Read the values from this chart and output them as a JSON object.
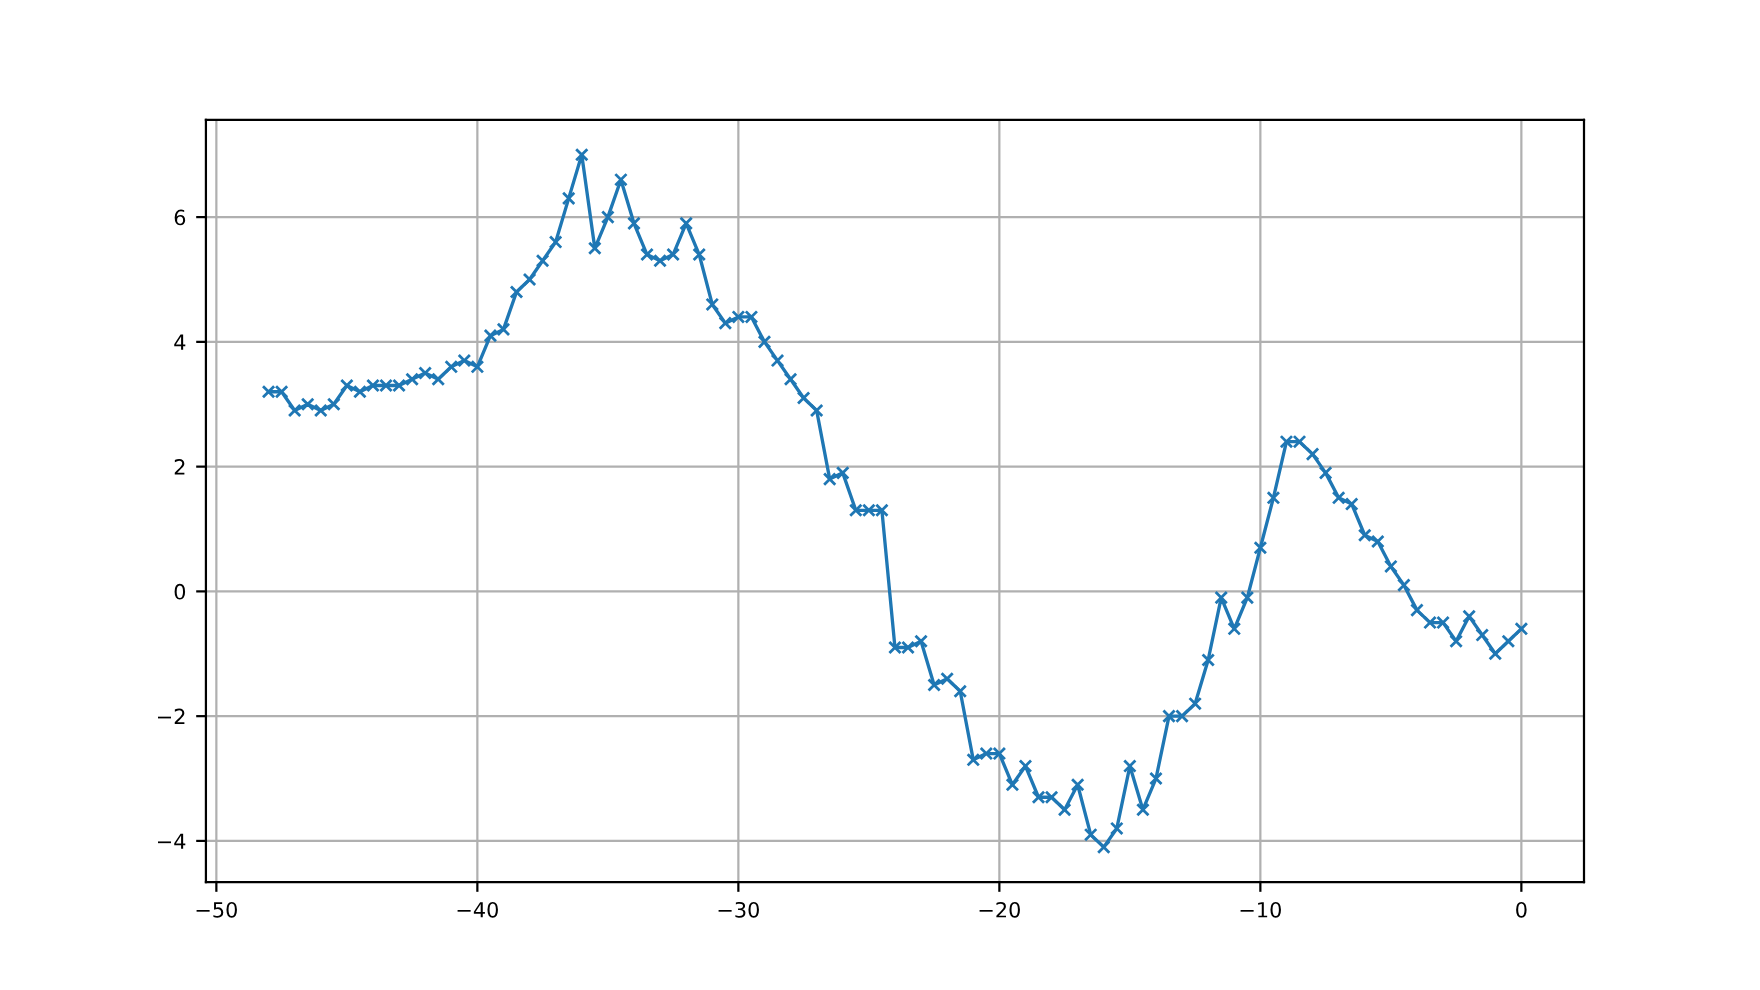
{
  "chart_data": {
    "type": "line",
    "marker": "cross",
    "line_style": "solid",
    "grid": true,
    "x": [
      -48,
      -47.5,
      -47,
      -46.5,
      -46,
      -45.5,
      -45,
      -44.5,
      -44,
      -43.5,
      -43,
      -42.5,
      -42,
      -41.5,
      -41,
      -40.5,
      -40,
      -39.5,
      -39,
      -38.5,
      -38,
      -37.5,
      -37,
      -36.5,
      -36,
      -35.5,
      -35,
      -34.5,
      -34,
      -33.5,
      -33,
      -32.5,
      -32,
      -31.5,
      -31,
      -30.5,
      -30,
      -29.5,
      -29,
      -28.5,
      -28,
      -27.5,
      -27,
      -26.5,
      -26,
      -25.5,
      -25,
      -24.5,
      -24,
      -23.5,
      -23,
      -22.5,
      -22,
      -21.5,
      -21,
      -20.5,
      -20,
      -19.5,
      -19,
      -18.5,
      -18,
      -17.5,
      -17,
      -16.5,
      -16,
      -15.5,
      -15,
      -14.5,
      -14,
      -13.5,
      -13,
      -12.5,
      -12,
      -11.5,
      -11,
      -10.5,
      -10,
      -9.5,
      -9,
      -8.5,
      -8,
      -7.5,
      -7,
      -6.5,
      -6,
      -5.5,
      -5,
      -4.5,
      -4,
      -3.5,
      -3,
      -2.5,
      -2,
      -1.5,
      -1,
      -0.5,
      0
    ],
    "series": [
      {
        "color": "#1f77b4",
        "values": [
          3.2,
          3.2,
          2.9,
          3.0,
          2.9,
          3.0,
          3.3,
          3.2,
          3.3,
          3.3,
          3.3,
          3.4,
          3.5,
          3.4,
          3.6,
          3.7,
          3.6,
          4.1,
          4.2,
          4.8,
          5.0,
          5.3,
          5.6,
          6.3,
          7.0,
          5.5,
          6.0,
          6.6,
          5.9,
          5.4,
          5.3,
          5.4,
          5.9,
          5.4,
          4.6,
          4.3,
          4.4,
          4.4,
          4.0,
          3.7,
          3.4,
          3.1,
          2.9,
          1.8,
          1.9,
          1.3,
          1.3,
          1.3,
          -0.9,
          -0.9,
          -0.8,
          -1.5,
          -1.4,
          -1.6,
          -2.7,
          -2.6,
          -2.6,
          -3.1,
          -2.8,
          -3.3,
          -3.3,
          -3.5,
          -3.1,
          -3.9,
          -4.1,
          -3.8,
          -2.8,
          -3.5,
          -3.0,
          -2.0,
          -2.0,
          -1.8,
          -1.1,
          -0.1,
          -0.6,
          -0.1,
          0.7,
          1.5,
          2.4,
          2.4,
          2.2,
          1.9,
          1.5,
          1.4,
          0.9,
          0.8,
          0.4,
          0.1,
          -0.3,
          -0.5,
          -0.5,
          -0.8,
          -0.4,
          -0.7,
          -1.0,
          -0.8,
          -0.6
        ]
      }
    ],
    "xlim": [
      -50.4,
      2.4
    ],
    "ylim": [
      -4.66,
      7.56
    ],
    "xticks": [
      {
        "value": -50,
        "label": "−50"
      },
      {
        "value": -40,
        "label": "−40"
      },
      {
        "value": -30,
        "label": "−30"
      },
      {
        "value": -20,
        "label": "−20"
      },
      {
        "value": -10,
        "label": "−10"
      },
      0
    ],
    "yticks": [
      {
        "value": -4,
        "label": "−4"
      },
      {
        "value": -2,
        "label": "−2"
      },
      0,
      2,
      4,
      6
    ]
  }
}
